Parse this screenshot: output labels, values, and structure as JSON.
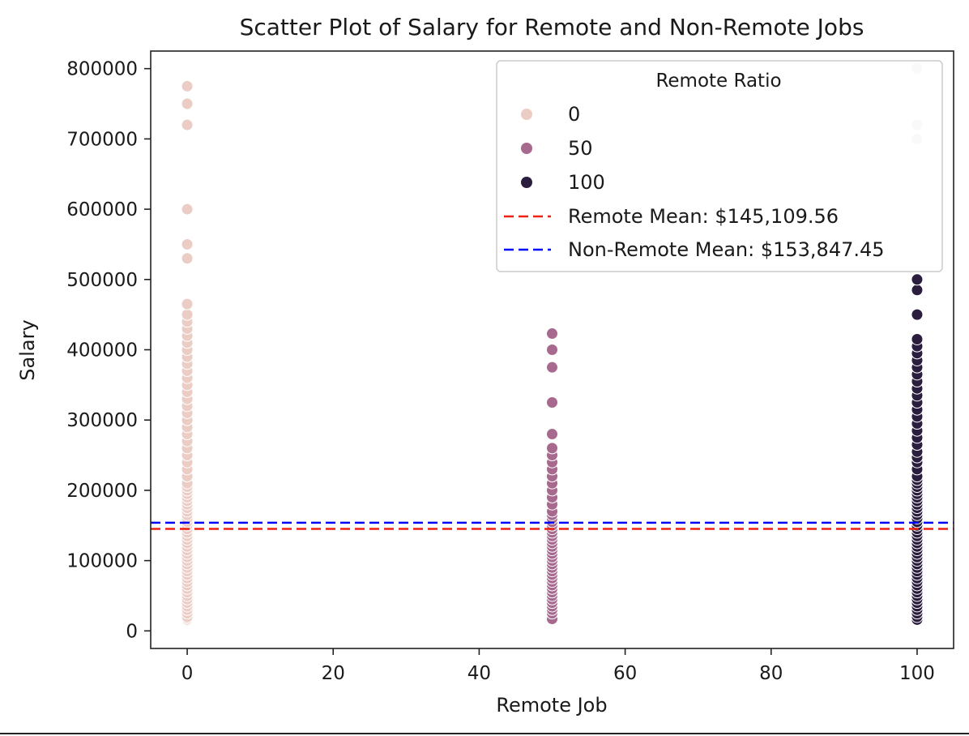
{
  "chart_data": {
    "type": "scatter",
    "title": "Scatter Plot of Salary for Remote and Non-Remote Jobs",
    "xlabel": "Remote Job",
    "ylabel": "Salary",
    "xlim": [
      -5,
      105
    ],
    "ylim": [
      -25000,
      825000
    ],
    "xticks": [
      0,
      20,
      40,
      60,
      80,
      100
    ],
    "yticks": [
      0,
      100000,
      200000,
      300000,
      400000,
      500000,
      600000,
      700000,
      800000
    ],
    "grid": false,
    "legend": {
      "title": "Remote Ratio",
      "placement": "upper right",
      "entries": [
        "0",
        "50",
        "100",
        "Remote Mean: $145,109.56",
        "Non-Remote Mean: $153,847.45"
      ]
    },
    "series": [
      {
        "name": "0",
        "color": "#ebcdc6",
        "x": 0,
        "values": [
          15000,
          16000,
          18000,
          20000,
          25000,
          30000,
          35000,
          40000,
          45000,
          50000,
          55000,
          60000,
          65000,
          70000,
          75000,
          80000,
          85000,
          90000,
          95000,
          100000,
          105000,
          110000,
          115000,
          120000,
          125000,
          130000,
          135000,
          140000,
          145000,
          150000,
          155000,
          160000,
          165000,
          170000,
          175000,
          180000,
          185000,
          190000,
          195000,
          200000,
          205000,
          210000,
          220000,
          230000,
          240000,
          250000,
          260000,
          270000,
          280000,
          290000,
          300000,
          310000,
          320000,
          330000,
          340000,
          350000,
          360000,
          370000,
          380000,
          390000,
          400000,
          410000,
          420000,
          430000,
          440000,
          450000,
          465000,
          530000,
          550000,
          600000,
          720000,
          750000,
          775000
        ]
      },
      {
        "name": "50",
        "color": "#a8698f",
        "x": 50,
        "values": [
          17000,
          25000,
          30000,
          35000,
          40000,
          45000,
          50000,
          55000,
          60000,
          65000,
          70000,
          75000,
          80000,
          85000,
          90000,
          95000,
          100000,
          105000,
          110000,
          115000,
          120000,
          125000,
          130000,
          135000,
          140000,
          145000,
          150000,
          155000,
          160000,
          165000,
          170000,
          180000,
          190000,
          200000,
          210000,
          220000,
          230000,
          240000,
          250000,
          260000,
          280000,
          325000,
          375000,
          400000,
          423000
        ]
      },
      {
        "name": "100",
        "color": "#2b1d3e",
        "x": 100,
        "values": [
          16000,
          20000,
          25000,
          30000,
          35000,
          40000,
          45000,
          50000,
          55000,
          60000,
          65000,
          70000,
          75000,
          80000,
          85000,
          90000,
          95000,
          100000,
          105000,
          110000,
          115000,
          120000,
          125000,
          130000,
          135000,
          140000,
          145000,
          150000,
          155000,
          160000,
          165000,
          170000,
          175000,
          180000,
          185000,
          190000,
          195000,
          200000,
          205000,
          210000,
          215000,
          220000,
          230000,
          240000,
          247000,
          255000,
          265000,
          275000,
          285000,
          295000,
          305000,
          315000,
          325000,
          335000,
          345000,
          355000,
          365000,
          375000,
          385000,
          395000,
          405000,
          415000,
          450000,
          485000,
          500000
        ]
      },
      {
        "name": "",
        "color": "#d5d5dd",
        "x": 100,
        "values": [
          700000,
          720000,
          800000
        ]
      }
    ],
    "reference_lines": [
      {
        "label": "Remote Mean: $145,109.56",
        "value": 145109.56,
        "color": "#ee2211",
        "style": "dashed"
      },
      {
        "label": "Non-Remote Mean: $153,847.45",
        "value": 153847.45,
        "color": "#0000ff",
        "style": "dashed"
      }
    ]
  }
}
